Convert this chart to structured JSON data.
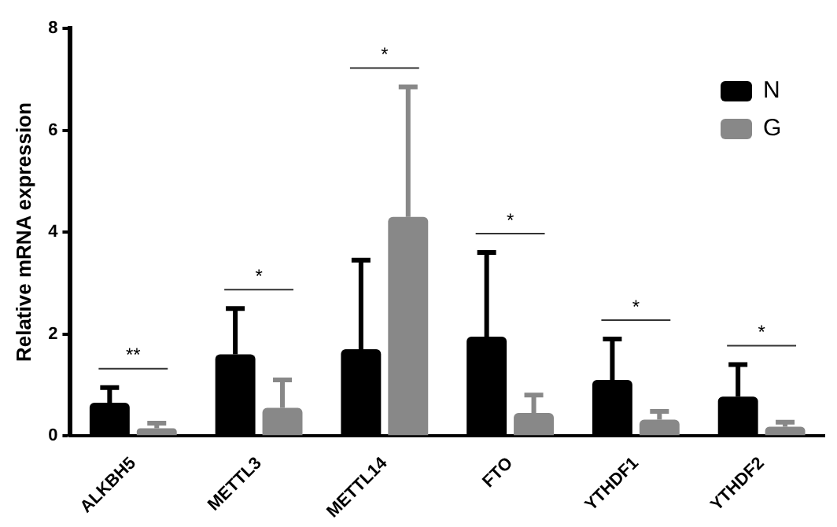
{
  "chart_data": {
    "type": "bar",
    "ylabel": "Relative mRNA expression",
    "categories": [
      "ALKBH5",
      "METTL3",
      "METTL14",
      "FTO",
      "YTHDF1",
      "YTHDF2"
    ],
    "series": [
      {
        "name": "N",
        "color": "#000000",
        "values": [
          0.65,
          1.6,
          1.7,
          1.95,
          1.1,
          0.77
        ],
        "errors": [
          [
            0.65,
            0.95
          ],
          [
            1.6,
            2.5
          ],
          [
            1.7,
            3.45
          ],
          [
            1.95,
            3.6
          ],
          [
            1.1,
            1.9
          ],
          [
            0.77,
            1.4
          ]
        ]
      },
      {
        "name": "G",
        "color": "#888888",
        "values": [
          0.15,
          0.55,
          4.3,
          0.45,
          0.32,
          0.18
        ],
        "errors": [
          [
            0.15,
            0.25
          ],
          [
            0.55,
            1.1
          ],
          [
            4.3,
            6.85
          ],
          [
            0.45,
            0.8
          ],
          [
            0.32,
            0.48
          ],
          [
            0.18,
            0.27
          ]
        ]
      }
    ],
    "ylim": [
      0,
      8
    ],
    "yticks": [
      0,
      2,
      4,
      6,
      8
    ],
    "grid": false,
    "legend": "top right",
    "annotations": [
      "**",
      "*",
      "*",
      "*",
      "*",
      "*"
    ]
  }
}
